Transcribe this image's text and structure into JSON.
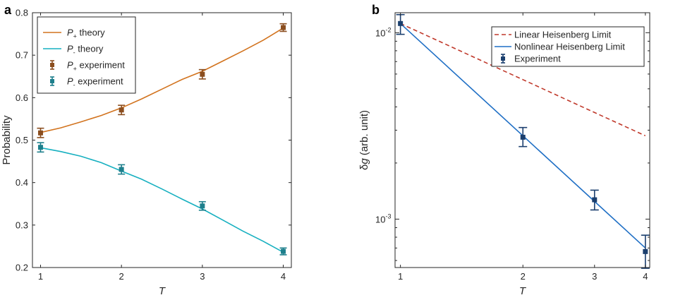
{
  "chart_data": [
    {
      "panel": "a",
      "type": "line",
      "xlabel": "T",
      "ylabel": "Probability",
      "xlim": [
        0.9,
        4.1
      ],
      "ylim": [
        0.2,
        0.8
      ],
      "xticks": [
        1,
        2,
        3,
        4
      ],
      "yticks": [
        0.2,
        0.3,
        0.4,
        0.5,
        0.6,
        0.7,
        0.8
      ],
      "yscale": "linear",
      "legend": "top-left",
      "series": [
        {
          "name": "P+ theory",
          "label_main": "P",
          "label_sub": "+",
          "label_rest": " theory",
          "kind": "line",
          "color": "#D2731E",
          "x": [
            1,
            1.25,
            1.5,
            1.75,
            2,
            2.25,
            2.5,
            2.75,
            3,
            3.25,
            3.5,
            3.75,
            4
          ],
          "y": [
            0.518,
            0.529,
            0.543,
            0.558,
            0.576,
            0.597,
            0.62,
            0.643,
            0.662,
            0.686,
            0.71,
            0.735,
            0.764
          ]
        },
        {
          "name": "P- theory",
          "label_main": "P",
          "label_sub": "-",
          "label_rest": " theory",
          "kind": "line",
          "color": "#17B0C0",
          "x": [
            1,
            1.25,
            1.5,
            1.75,
            2,
            2.25,
            2.5,
            2.75,
            3,
            3.25,
            3.5,
            3.75,
            4
          ],
          "y": [
            0.482,
            0.473,
            0.462,
            0.447,
            0.427,
            0.408,
            0.385,
            0.361,
            0.338,
            0.312,
            0.286,
            0.262,
            0.236
          ]
        },
        {
          "name": "P+ experiment",
          "label_main": "P",
          "label_sub": "+",
          "label_rest": " experiment",
          "kind": "errorbar",
          "color": "#8B4E1F",
          "x": [
            1,
            2,
            3,
            4
          ],
          "y": [
            0.517,
            0.571,
            0.655,
            0.765
          ],
          "err": [
            0.011,
            0.011,
            0.011,
            0.009
          ]
        },
        {
          "name": "P- experiment",
          "label_main": "P",
          "label_sub": "-",
          "label_rest": " experiment",
          "kind": "errorbar",
          "color": "#1E7F8C",
          "x": [
            1,
            2,
            3,
            4
          ],
          "y": [
            0.483,
            0.431,
            0.345,
            0.238
          ],
          "err": [
            0.011,
            0.011,
            0.01,
            0.008
          ]
        }
      ]
    },
    {
      "panel": "b",
      "type": "line",
      "xlabel": "T",
      "ylabel": "δg (arb. unit)",
      "ylabel_sym": "δ",
      "ylabel_var": "g",
      "ylabel_rest": " (arb. unit)",
      "xscale": "log",
      "yscale": "log",
      "xlim": [
        0.97,
        4.1
      ],
      "ylim": [
        0.00055,
        0.0128
      ],
      "xticks": [
        1,
        2,
        3,
        4
      ],
      "yticks": [
        0.001,
        0.01
      ],
      "ytick_labels": [
        {
          "base": "10",
          "exp": "-3"
        },
        {
          "base": "10",
          "exp": "-2"
        }
      ],
      "legend": "top-right",
      "series": [
        {
          "name": "Linear Heisenberg Limit",
          "kind": "dashed-line",
          "color": "#C0392B",
          "x": [
            1,
            2,
            3,
            4
          ],
          "y": [
            0.0112,
            0.0056,
            0.00373,
            0.0028
          ]
        },
        {
          "name": "Nonlinear Heisenberg Limit",
          "kind": "line",
          "color": "#1F6FC5",
          "x": [
            1,
            2,
            3,
            4
          ],
          "y": [
            0.0112,
            0.0028,
            0.001244,
            0.0007
          ]
        },
        {
          "name": "Experiment",
          "kind": "errorbar",
          "color": "#1B3F6E",
          "x": [
            1,
            2,
            3,
            4
          ],
          "y": [
            0.0112,
            0.00275,
            0.00127,
            0.00067
          ],
          "ylow": [
            0.0098,
            0.00245,
            0.00112,
            0.000545
          ],
          "yhigh": [
            0.0125,
            0.0031,
            0.00143,
            0.00082
          ]
        }
      ]
    }
  ]
}
